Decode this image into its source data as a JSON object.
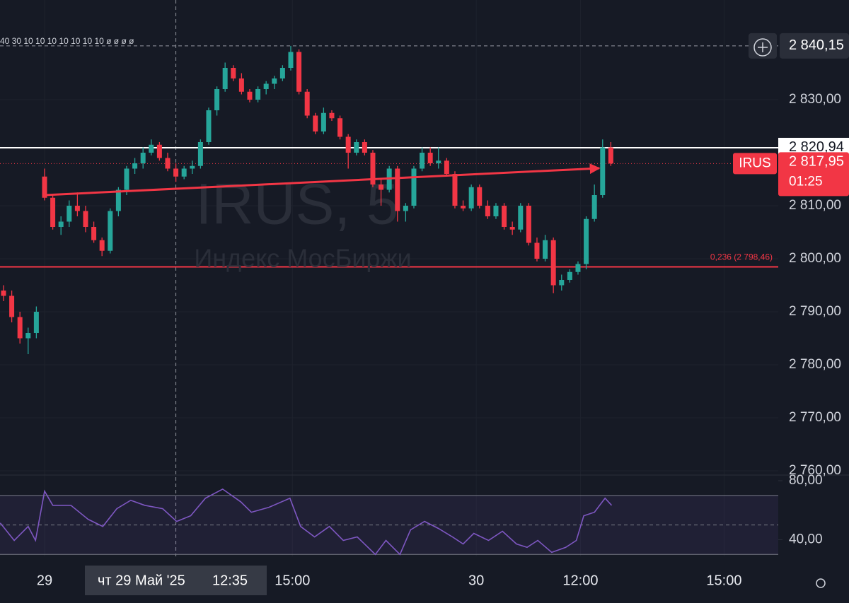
{
  "chart_data": [
    {
      "type": "candlestick",
      "title": "IRUS, 5",
      "subtitle": "Индекс МосБиржи",
      "top_text": "40 30 10 10 10 10 10 10 10 ø ø ø ø",
      "up_color": "#26a69a",
      "down_color": "#f23645",
      "x": [
        -5,
        -4,
        -3,
        -2,
        -1,
        0,
        1,
        2,
        3,
        4,
        5,
        6,
        7,
        8,
        9,
        10,
        11,
        12,
        13,
        14,
        15,
        16,
        17,
        18,
        19,
        20,
        21,
        22,
        23,
        24,
        25,
        26,
        27,
        28,
        29,
        30,
        31,
        32,
        33,
        34,
        35,
        36,
        37,
        38,
        39,
        40,
        41,
        42,
        43,
        44,
        45,
        46,
        47,
        48,
        49,
        50,
        51,
        52,
        53,
        54,
        55,
        56,
        57,
        58,
        59,
        60,
        61,
        62,
        63,
        64,
        65,
        66,
        67,
        68,
        69
      ],
      "open": [
        2794,
        2793,
        2789,
        2785,
        2786,
        2815.5,
        2811.5,
        2806,
        2807,
        2810,
        2809,
        2806,
        2803.5,
        2801.5,
        2809,
        2813,
        2817,
        2818,
        2820,
        2821.5,
        2819,
        2817,
        2815.5,
        2817,
        2817.5,
        2822,
        2828,
        2832,
        2836,
        2834,
        2831.5,
        2830,
        2832,
        2833,
        2834,
        2836,
        2839,
        2831.5,
        2827,
        2824,
        2827.5,
        2826.5,
        2823,
        2820,
        2822,
        2820,
        2814,
        2813,
        2817,
        2809,
        2810,
        2817,
        2820,
        2818,
        2818.5,
        2816,
        2810,
        2809.5,
        2813.5,
        2810,
        2808,
        2810,
        2806,
        2805.5,
        2810,
        2803,
        2800,
        2803.5,
        2795,
        2796,
        2797.5,
        2799,
        2807.5,
        2812,
        2821
      ],
      "high": [
        2795,
        2794,
        2790,
        2787,
        2791,
        2817,
        2812,
        2808,
        2811,
        2812.5,
        2810,
        2807,
        2804,
        2809.5,
        2813.5,
        2817.5,
        2819,
        2821,
        2822.5,
        2822,
        2820,
        2818,
        2817.5,
        2818.5,
        2822.5,
        2828.5,
        2832.5,
        2837,
        2836.5,
        2835,
        2832,
        2832.5,
        2833.5,
        2834.5,
        2836.5,
        2840.15,
        2839.5,
        2832,
        2827.5,
        2828.5,
        2828,
        2827,
        2823.5,
        2822.5,
        2822.5,
        2820.5,
        2815,
        2817.5,
        2817.5,
        2810.5,
        2817.5,
        2821,
        2821,
        2821,
        2819,
        2816.5,
        2811,
        2814,
        2814,
        2811,
        2810.5,
        2810.5,
        2807,
        2810.5,
        2810.5,
        2804,
        2804.5,
        2804,
        2797,
        2798,
        2799.5,
        2808,
        2814,
        2822.5,
        2822
      ],
      "low": [
        2792,
        2788,
        2784,
        2782,
        2785,
        2811,
        2805.5,
        2804.5,
        2806,
        2808,
        2805,
        2803,
        2800.5,
        2801,
        2808,
        2812,
        2816,
        2817,
        2819.5,
        2818.5,
        2816.5,
        2814.5,
        2815,
        2816,
        2817,
        2821.5,
        2827,
        2831.5,
        2833.5,
        2831,
        2829.5,
        2829.5,
        2831,
        2832,
        2833.5,
        2835.5,
        2831,
        2826.5,
        2823.5,
        2823.5,
        2826,
        2822.5,
        2817,
        2819.5,
        2819.5,
        2813.5,
        2810,
        2812.5,
        2807,
        2807,
        2809.5,
        2816.5,
        2817.5,
        2817,
        2815.5,
        2809.5,
        2809,
        2809,
        2809.5,
        2807.5,
        2807.5,
        2805.5,
        2804.5,
        2805,
        2802.5,
        2799.5,
        2799.5,
        2793.5,
        2794,
        2795.5,
        2797,
        2798,
        2807,
        2811.5,
        2817.5
      ],
      "close": [
        2793,
        2789,
        2785,
        2786,
        2790,
        2811.5,
        2806,
        2807,
        2810,
        2809,
        2806,
        2803.5,
        2801.5,
        2809,
        2813,
        2817,
        2818,
        2820,
        2821.5,
        2819,
        2817,
        2815.5,
        2817,
        2817.5,
        2822,
        2828,
        2832,
        2836,
        2834,
        2831.5,
        2830,
        2832,
        2833,
        2834,
        2836,
        2839,
        2831.5,
        2827,
        2824,
        2827.5,
        2826.5,
        2823,
        2820,
        2822,
        2820,
        2814,
        2813,
        2817,
        2809,
        2810,
        2817,
        2820,
        2818,
        2818.5,
        2816,
        2810,
        2809.5,
        2813.5,
        2810,
        2808,
        2810,
        2806,
        2805.5,
        2810,
        2803,
        2800,
        2803.5,
        2795,
        2796,
        2797.5,
        2799,
        2807.5,
        2812,
        2821,
        2817.95
      ],
      "xlim": [
        -5.43,
        89.4
      ],
      "ylim": [
        2759.2,
        2848.8
      ],
      "yticks": [
        {
          "value": 2830,
          "label": "2 830,00"
        },
        {
          "value": 2810,
          "label": "2 810,00"
        },
        {
          "value": 2800,
          "label": "2 800,00"
        },
        {
          "value": 2790,
          "label": "2 790,00"
        },
        {
          "value": 2780,
          "label": "2 780,00"
        },
        {
          "value": 2770,
          "label": "2 770,00"
        },
        {
          "value": 2760,
          "label": "2 760,00"
        }
      ],
      "xticks": [
        {
          "value": 0,
          "label": "29"
        },
        {
          "value": 30.2,
          "label": "15:00"
        },
        {
          "value": 52.6,
          "label": "30"
        },
        {
          "value": 65.3,
          "label": "12:00"
        },
        {
          "value": 82.8,
          "label": "15:00"
        }
      ],
      "crosshair": {
        "x": 16,
        "date_label": "чт 29 Май '25",
        "time_label": "12:35"
      },
      "levels": [
        {
          "value": 2840.15,
          "label": "2 840,15",
          "style": "dashed",
          "color": "#9598a1"
        },
        {
          "value": 2820.94,
          "label": "2 820,94",
          "style": "solid",
          "color": "#ffffff"
        },
        {
          "value": 2798.46,
          "label": "0,236 (2 798,46)",
          "style": "solid",
          "color": "#f23645"
        },
        {
          "value": 2817.95,
          "label": "2 817,95",
          "style": "dotted",
          "color": "#f23645",
          "symbol": "IRUS",
          "countdown": "01:25"
        }
      ],
      "trendline": {
        "start": [
          0,
          2812
        ],
        "end": [
          67.6,
          2817.07
        ],
        "color": "#f23645"
      }
    },
    {
      "type": "line",
      "color": "#7e57c2",
      "x": [
        -5.4,
        -3.7,
        -2.0,
        -1.1,
        0,
        1.0,
        3.2,
        5.3,
        7.1,
        8.8,
        10.5,
        12.2,
        14.4,
        16.1,
        17.8,
        19.6,
        21.7,
        23.9,
        25.2,
        27.3,
        29.9,
        31.2,
        32.9,
        34.7,
        36.4,
        38.1,
        40.3,
        41.6,
        43.3,
        44.6,
        46.3,
        48.0,
        49.7,
        51.0,
        52.3,
        54.1,
        55.8,
        57.5,
        58.8,
        60.1,
        61.8,
        63.5,
        64.8,
        65.7,
        67.0,
        68.3,
        69.1
      ],
      "values": [
        51.4,
        39.5,
        49.0,
        39.5,
        72.9,
        63.3,
        63.3,
        53.8,
        49.0,
        61.0,
        66.7,
        63.3,
        61.0,
        52.4,
        56.2,
        68.1,
        74.3,
        65.7,
        58.6,
        61.9,
        68.1,
        49.0,
        41.9,
        49.0,
        39.5,
        41.9,
        30.0,
        39.5,
        30.0,
        46.7,
        52.4,
        47.6,
        41.9,
        37.1,
        44.3,
        39.5,
        45.7,
        37.1,
        34.8,
        39.5,
        31.4,
        34.8,
        39.5,
        56.2,
        58.6,
        68.1,
        63.3
      ],
      "xlim": [
        -5.43,
        89.4
      ],
      "ylim": [
        28.7,
        82.4
      ],
      "yticks": [
        {
          "value": 80,
          "label": "80,00"
        },
        {
          "value": 40,
          "label": "40,00"
        }
      ],
      "band": [
        30,
        70
      ],
      "midline": 50
    }
  ]
}
